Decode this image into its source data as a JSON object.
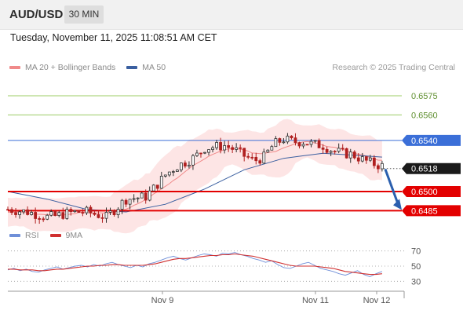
{
  "header": {
    "symbol": "AUD/USD",
    "timeframe": "30 MIN",
    "datetime": "Tuesday, November 11, 2025 11:08:51 AM CET"
  },
  "legend": {
    "bollinger_label": "MA 20 + Bollinger Bands",
    "ma50_label": "MA 50",
    "credit": "Research © 2025 Trading Central"
  },
  "rsi_legend": {
    "rsi_label": "RSI",
    "ma_label": "9MA"
  },
  "colors": {
    "candle_up": "#2f2f2f",
    "candle_down": "#b02020",
    "bollinger_band": "#fde0e0",
    "bollinger_line": "#f08a8a",
    "ma50": "#3a5fa0",
    "target_green": "#9ccc65",
    "resistance_blue": "#3b6fd8",
    "support_red": "#e30000",
    "rsi": "#6f8fd8",
    "rsi_ma": "#d03030",
    "arrow": "#2b5fae"
  },
  "chart_data": [
    {
      "type": "candlestick",
      "title": "AUD/USD 30 MIN",
      "x_tick_labels": [
        "Nov 9",
        "Nov 11",
        "Nov 12"
      ],
      "ylim": [
        0.6476,
        0.6591
      ],
      "current_price": 0.6518,
      "levels": [
        {
          "value": 0.6575,
          "label": "0.6575",
          "kind": "target"
        },
        {
          "value": 0.656,
          "label": "0.6560",
          "kind": "target"
        },
        {
          "value": 0.654,
          "label": "0.6540",
          "kind": "resistance"
        },
        {
          "value": 0.6518,
          "label": "0.6518",
          "kind": "last"
        },
        {
          "value": 0.65,
          "label": "0.6500",
          "kind": "support"
        },
        {
          "value": 0.6485,
          "label": "0.6485",
          "kind": "support"
        }
      ],
      "price_path": [
        [
          0,
          0.6486
        ],
        [
          5,
          0.6485
        ],
        [
          10,
          0.6484
        ],
        [
          15,
          0.6482
        ],
        [
          20,
          0.648
        ],
        [
          25,
          0.6481
        ],
        [
          30,
          0.6483
        ],
        [
          35,
          0.6484
        ],
        [
          40,
          0.6484
        ],
        [
          45,
          0.6482
        ],
        [
          50,
          0.648
        ],
        [
          55,
          0.6487
        ],
        [
          60,
          0.6494
        ],
        [
          65,
          0.6495
        ],
        [
          70,
          0.6496
        ],
        [
          75,
          0.6504
        ],
        [
          80,
          0.6513
        ],
        [
          85,
          0.6519
        ],
        [
          90,
          0.6523
        ],
        [
          95,
          0.6527
        ],
        [
          100,
          0.6534
        ],
        [
          105,
          0.6535
        ],
        [
          110,
          0.6536
        ],
        [
          115,
          0.6533
        ],
        [
          120,
          0.6528
        ],
        [
          125,
          0.6524
        ],
        [
          130,
          0.6527
        ],
        [
          135,
          0.6537
        ],
        [
          140,
          0.6541
        ],
        [
          145,
          0.6539
        ],
        [
          150,
          0.6539
        ],
        [
          155,
          0.6537
        ],
        [
          160,
          0.6536
        ],
        [
          165,
          0.6532
        ],
        [
          170,
          0.653
        ],
        [
          175,
          0.6529
        ],
        [
          180,
          0.6525
        ],
        [
          185,
          0.6522
        ],
        [
          190,
          0.652
        ]
      ],
      "ma50_path": [
        [
          0,
          0.65
        ],
        [
          20,
          0.6494
        ],
        [
          40,
          0.6486
        ],
        [
          60,
          0.6484
        ],
        [
          80,
          0.649
        ],
        [
          100,
          0.6502
        ],
        [
          120,
          0.6517
        ],
        [
          140,
          0.6526
        ],
        [
          160,
          0.653
        ],
        [
          180,
          0.6528
        ],
        [
          190,
          0.6527
        ]
      ],
      "forecast_arrow": {
        "from": 0.652,
        "to": 0.6485
      }
    },
    {
      "type": "line",
      "title": "RSI",
      "ylim": [
        20,
        80
      ],
      "y_ticks": [
        70,
        50,
        30
      ],
      "series": [
        {
          "name": "RSI",
          "values": [
            45,
            47,
            44,
            46,
            43,
            42,
            45,
            47,
            49,
            46,
            48,
            50,
            51,
            49,
            52,
            50,
            53,
            55,
            52,
            50,
            48,
            51,
            49,
            53,
            55,
            58,
            61,
            63,
            60,
            58,
            61,
            64,
            66,
            65,
            63,
            67,
            66,
            68,
            65,
            63,
            60,
            58,
            55,
            57,
            52,
            48,
            47,
            50,
            53,
            55,
            51,
            47,
            45,
            43,
            40,
            38,
            41,
            44,
            39,
            36,
            40,
            43
          ]
        },
        {
          "name": "9MA",
          "values": [
            46,
            46,
            45,
            45,
            45,
            44,
            44,
            45,
            46,
            46,
            47,
            48,
            49,
            50,
            50,
            51,
            51,
            52,
            52,
            51,
            51,
            51,
            51,
            52,
            53,
            55,
            57,
            59,
            60,
            60,
            61,
            62,
            63,
            64,
            64,
            65,
            65,
            66,
            65,
            64,
            63,
            61,
            59,
            57,
            55,
            53,
            51,
            50,
            50,
            50,
            50,
            49,
            48,
            47,
            45,
            43,
            42,
            41,
            40,
            39,
            39,
            40
          ]
        }
      ]
    }
  ]
}
